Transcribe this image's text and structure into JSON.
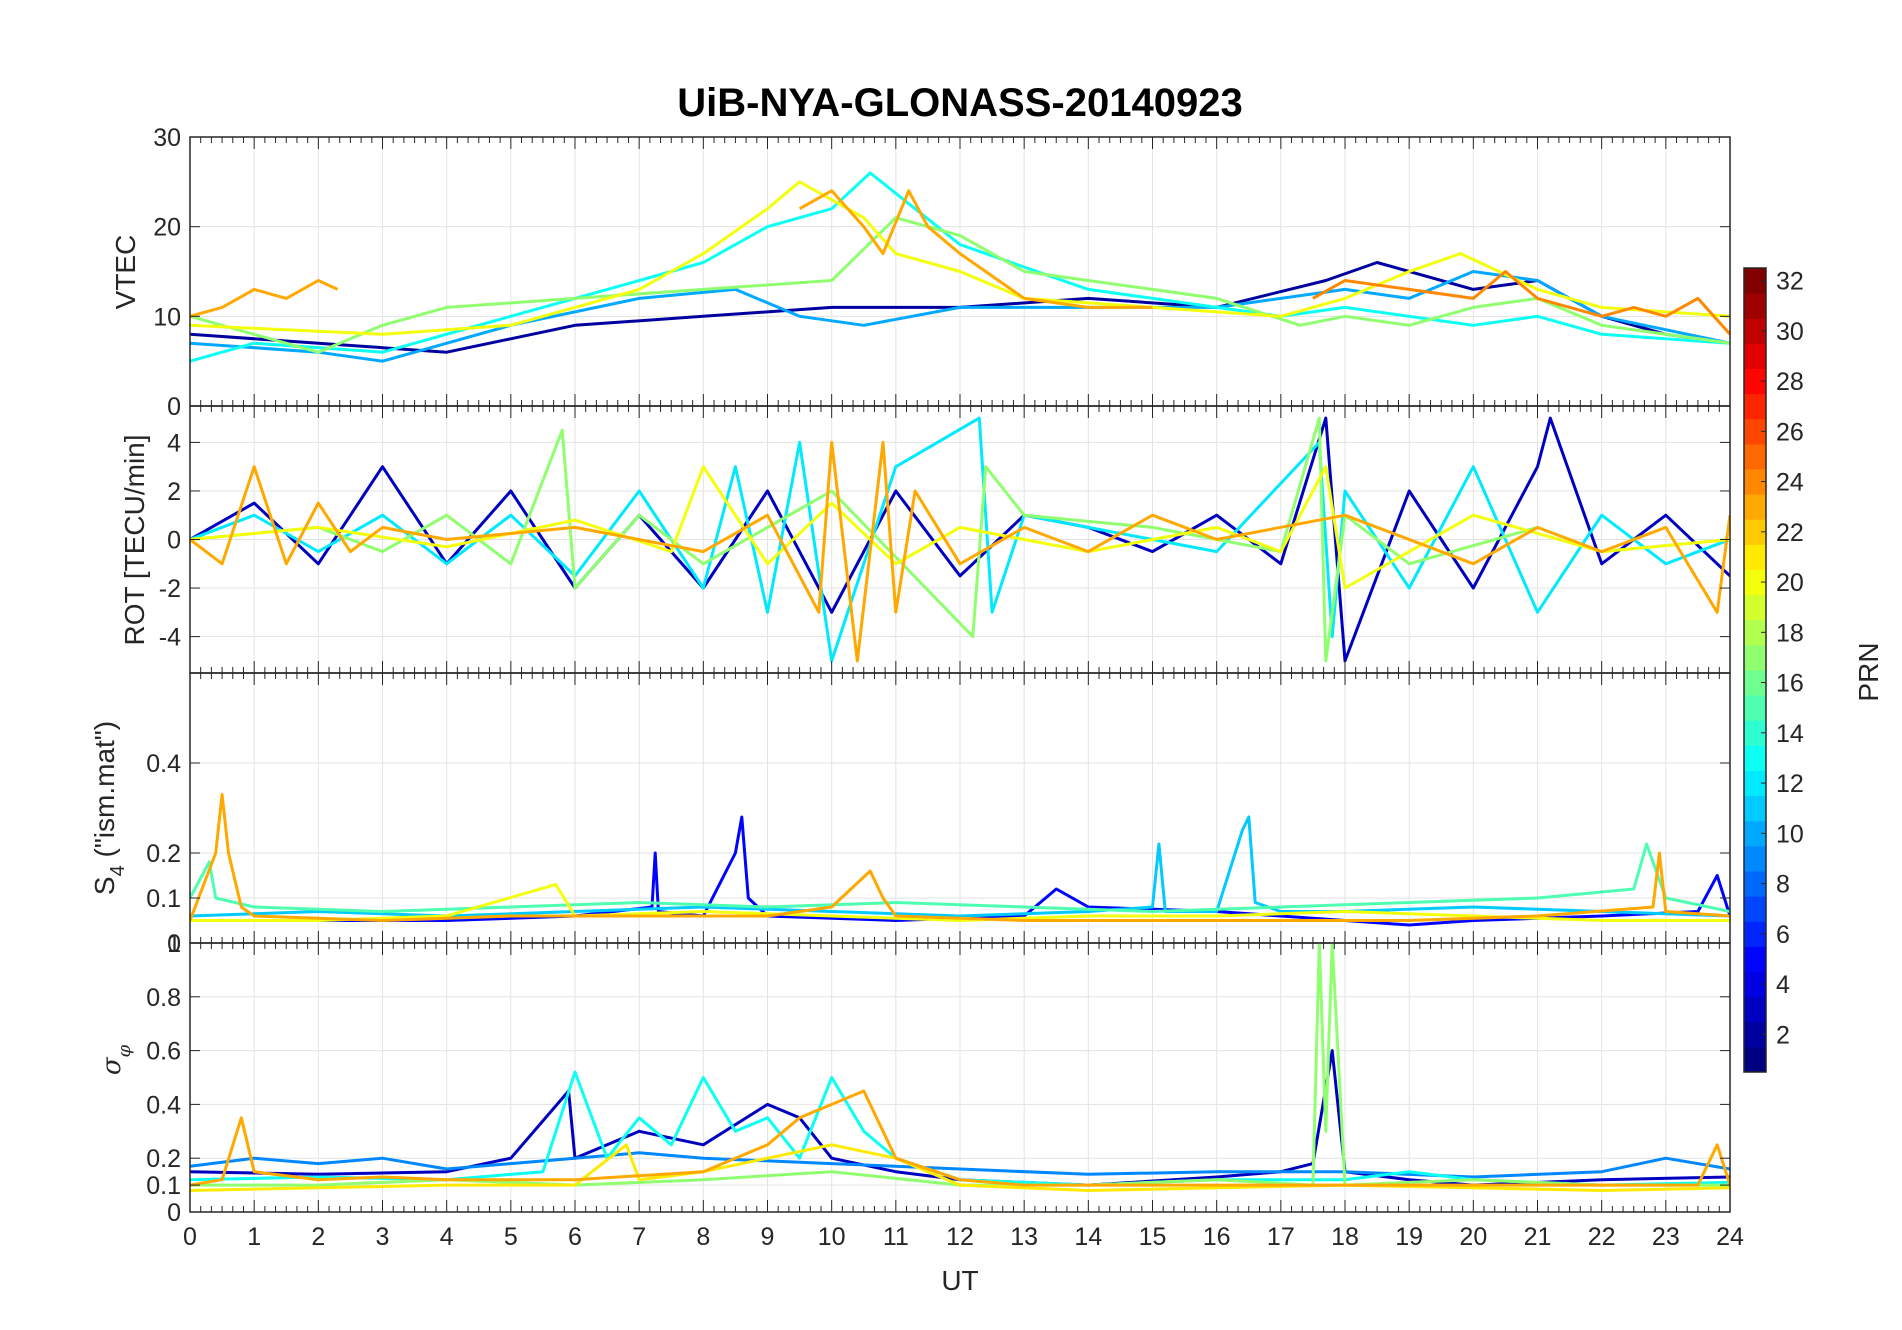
{
  "title": "UiB-NYA-GLONASS-20140923",
  "xlabel": "UT",
  "colorbar": {
    "label": "PRN",
    "min": 1,
    "max": 32,
    "colormap": "jet",
    "ticks": [
      "2",
      "4",
      "6",
      "8",
      "10",
      "12",
      "14",
      "16",
      "18",
      "20",
      "22",
      "24",
      "26",
      "28",
      "30",
      "32"
    ]
  },
  "chart_data": [
    {
      "type": "line",
      "panel": "VTEC",
      "ylabel": "VTEC",
      "xlim": [
        0,
        24
      ],
      "ylim": [
        0,
        30
      ],
      "yticks": [
        "0",
        "10",
        "20",
        "30"
      ],
      "xticks": [],
      "grid": true,
      "series": [
        {
          "prn": 2,
          "x": [
            0,
            2,
            4,
            6,
            8,
            10,
            11,
            12,
            14,
            16,
            17.7,
            18.5,
            20,
            21,
            22,
            23,
            24
          ],
          "y": [
            8,
            7,
            6,
            9,
            10,
            11,
            11,
            11,
            12,
            11,
            14,
            16,
            13,
            14,
            10,
            8,
            7
          ]
        },
        {
          "prn": 10,
          "x": [
            0,
            2,
            3,
            5,
            7,
            8.5,
            9.5,
            10.5,
            12,
            14,
            16,
            18,
            19,
            20,
            21,
            22,
            24
          ],
          "y": [
            7,
            6,
            5,
            9,
            12,
            13,
            10,
            9,
            11,
            11,
            11,
            13,
            12,
            15,
            14,
            10,
            7
          ]
        },
        {
          "prn": 13,
          "x": [
            0,
            1,
            3,
            5,
            7,
            8,
            9,
            9.5,
            10,
            10.6,
            12,
            14,
            17,
            18,
            20,
            21,
            22,
            24
          ],
          "y": [
            5,
            7,
            6,
            10,
            14,
            16,
            20,
            21,
            22,
            26,
            18,
            13,
            10,
            11,
            9,
            10,
            8,
            7
          ]
        },
        {
          "prn": 17,
          "x": [
            0,
            1,
            2,
            3,
            4,
            6,
            8,
            10,
            11,
            12,
            13,
            14,
            15,
            16,
            17.3,
            18,
            19,
            20,
            21,
            22,
            24
          ],
          "y": [
            10,
            8,
            6,
            9,
            11,
            12,
            13,
            14,
            21,
            19,
            15,
            14,
            13,
            12,
            9,
            10,
            9,
            11,
            12,
            9,
            7
          ]
        },
        {
          "prn": 20,
          "x": [
            0,
            3,
            5,
            6,
            7,
            8,
            9,
            9.5,
            10,
            10.5,
            11,
            12,
            13,
            15,
            17,
            18,
            19,
            19.8,
            21,
            22,
            24
          ],
          "y": [
            9,
            8,
            9,
            11,
            13,
            17,
            22,
            25,
            23,
            21,
            17,
            15,
            12,
            11,
            10,
            12,
            15,
            17,
            13,
            11,
            10
          ]
        },
        {
          "prn": 23,
          "x": [
            0,
            0.5,
            1,
            1.5,
            2,
            2.3
          ],
          "y": [
            10,
            11,
            13,
            12,
            14,
            13
          ]
        },
        {
          "prn": 23,
          "x": [
            9.5,
            10,
            10.5,
            10.8,
            11.2,
            11.5,
            12,
            13,
            14,
            15
          ],
          "y": [
            22,
            24,
            20,
            17,
            24,
            20,
            17,
            12,
            11,
            11
          ]
        },
        {
          "prn": 24,
          "x": [
            17.5,
            18,
            19,
            20,
            20.5,
            21,
            22,
            22.5,
            23,
            23.5,
            24
          ],
          "y": [
            12,
            14,
            13,
            12,
            15,
            12,
            10,
            11,
            10,
            12,
            8
          ]
        }
      ]
    },
    {
      "type": "line",
      "panel": "ROT",
      "ylabel": "ROT [TECU/min]",
      "xlim": [
        0,
        24
      ],
      "ylim": [
        -5.5,
        5.5
      ],
      "yticks": [
        "-4",
        "-2",
        "0",
        "2",
        "4"
      ],
      "xticks": [],
      "grid": true,
      "series": [
        {
          "prn": 3,
          "x": [
            0,
            1,
            2,
            3,
            4,
            5,
            6,
            7,
            8,
            9,
            10,
            11,
            12,
            13,
            14,
            15,
            16,
            17,
            17.7,
            18,
            19,
            20,
            21,
            21.2,
            22,
            23,
            24
          ],
          "y": [
            0,
            1.5,
            -1,
            3,
            -1,
            2,
            -2,
            1,
            -2,
            2,
            -3,
            2,
            -1.5,
            1,
            0.5,
            -0.5,
            1,
            -1,
            5,
            -5,
            2,
            -2,
            3,
            5,
            -1,
            1,
            -1.5
          ]
        },
        {
          "prn": 12,
          "x": [
            0,
            1,
            2,
            3,
            4,
            5,
            6,
            7,
            8,
            8.5,
            9,
            9.5,
            10,
            11,
            12.3,
            12.5,
            13,
            14,
            16,
            17.6,
            17.8,
            18,
            19,
            20,
            21,
            22,
            23,
            24
          ],
          "y": [
            0,
            1,
            -0.5,
            1,
            -1,
            1,
            -1.5,
            2,
            -2,
            3,
            -3,
            4,
            -5,
            3,
            5,
            -3,
            1,
            0.5,
            -0.5,
            4,
            -4,
            2,
            -2,
            3,
            -3,
            1,
            -1,
            0
          ]
        },
        {
          "prn": 17,
          "x": [
            0,
            2,
            3,
            4,
            5,
            5.8,
            6,
            7,
            8,
            10,
            12.2,
            12.4,
            13,
            15,
            17,
            17.6,
            17.7,
            18,
            19,
            21,
            22,
            24
          ],
          "y": [
            0,
            0.5,
            -0.5,
            1,
            -1,
            4.5,
            -2,
            1,
            -1,
            2,
            -4,
            3,
            1,
            0.5,
            -0.5,
            5,
            -5,
            1,
            -1,
            0.5,
            -0.5,
            0
          ]
        },
        {
          "prn": 20,
          "x": [
            0,
            2,
            4,
            6,
            7.5,
            8,
            9,
            10,
            11,
            12,
            14,
            16,
            17,
            17.7,
            18,
            20,
            22,
            24
          ],
          "y": [
            0,
            0.5,
            -0.3,
            0.8,
            -0.5,
            3,
            -1,
            1.5,
            -1,
            0.5,
            -0.5,
            0.5,
            -0.5,
            3,
            -2,
            1,
            -0.5,
            0
          ]
        },
        {
          "prn": 23,
          "x": [
            0,
            0.5,
            1,
            1.5,
            2,
            2.5,
            3,
            4,
            6,
            8,
            9,
            9.8,
            10,
            10.4,
            10.8,
            11,
            11.3,
            12,
            13,
            14,
            15,
            16,
            18,
            20,
            21,
            22,
            23,
            23.8,
            24
          ],
          "y": [
            0,
            -1,
            3,
            -1,
            1.5,
            -0.5,
            0.5,
            0,
            0.5,
            -0.5,
            1,
            -3,
            4,
            -5,
            4,
            -3,
            2,
            -1,
            0.5,
            -0.5,
            1,
            0,
            1,
            -1,
            0.5,
            -0.5,
            0.5,
            -3,
            1
          ]
        }
      ]
    },
    {
      "type": "line",
      "panel": "S4",
      "ylabel": "S_4 (\"ism.mat\")",
      "ylabel_symbol": "S",
      "ylabel_subscript": "4",
      "ylabel_rest": " (\"ism.mat\")",
      "xlim": [
        0,
        24
      ],
      "ylim": [
        0,
        0.6
      ],
      "yticks": [
        "0",
        "0.1",
        "0.2",
        "0.4"
      ],
      "xticks": [],
      "grid": true,
      "series": [
        {
          "prn": 5,
          "x": [
            0,
            2,
            4,
            6,
            7.2,
            7.25,
            7.3,
            8,
            8.5,
            8.6,
            8.7,
            9,
            11,
            13,
            13.5,
            14,
            16,
            18,
            19,
            20,
            22,
            23.5,
            23.8,
            24
          ],
          "y": [
            0.05,
            0.05,
            0.05,
            0.06,
            0.08,
            0.2,
            0.07,
            0.06,
            0.2,
            0.28,
            0.1,
            0.06,
            0.05,
            0.06,
            0.12,
            0.08,
            0.07,
            0.05,
            0.04,
            0.05,
            0.06,
            0.07,
            0.15,
            0.06
          ]
        },
        {
          "prn": 11,
          "x": [
            0,
            2,
            4,
            6,
            8,
            10,
            12,
            14,
            15,
            15.1,
            15.2,
            16,
            16.4,
            16.5,
            16.6,
            17,
            18,
            20,
            22,
            24
          ],
          "y": [
            0.06,
            0.07,
            0.06,
            0.07,
            0.08,
            0.07,
            0.06,
            0.07,
            0.08,
            0.22,
            0.07,
            0.07,
            0.25,
            0.28,
            0.09,
            0.07,
            0.07,
            0.08,
            0.07,
            0.06
          ]
        },
        {
          "prn": 15,
          "x": [
            0,
            0.3,
            0.4,
            1,
            3,
            5,
            7,
            9,
            11,
            13,
            15,
            17,
            19,
            21,
            22.5,
            22.7,
            23,
            24
          ],
          "y": [
            0.1,
            0.18,
            0.1,
            0.08,
            0.07,
            0.08,
            0.09,
            0.08,
            0.09,
            0.08,
            0.07,
            0.08,
            0.09,
            0.1,
            0.12,
            0.22,
            0.1,
            0.07
          ]
        },
        {
          "prn": 20,
          "x": [
            0,
            2,
            4,
            5.7,
            6,
            8,
            10,
            12,
            14,
            16,
            18,
            20,
            22,
            24
          ],
          "y": [
            0.05,
            0.05,
            0.06,
            0.13,
            0.06,
            0.07,
            0.06,
            0.05,
            0.06,
            0.06,
            0.07,
            0.06,
            0.05,
            0.05
          ]
        },
        {
          "prn": 23,
          "x": [
            0,
            0.4,
            0.5,
            0.6,
            0.8,
            1,
            3,
            5,
            7,
            9,
            10,
            10.6,
            10.8,
            11,
            13,
            15,
            17,
            19,
            21,
            22.8,
            22.9,
            23,
            24
          ],
          "y": [
            0.05,
            0.2,
            0.33,
            0.2,
            0.08,
            0.06,
            0.05,
            0.06,
            0.06,
            0.06,
            0.08,
            0.16,
            0.1,
            0.06,
            0.05,
            0.05,
            0.05,
            0.05,
            0.06,
            0.08,
            0.2,
            0.07,
            0.06
          ]
        }
      ]
    },
    {
      "type": "line",
      "panel": "sigma_phi",
      "ylabel": "σ_φ",
      "ylabel_symbol": "σ",
      "ylabel_subscript": "φ",
      "xlim": [
        0,
        24
      ],
      "ylim": [
        0,
        1
      ],
      "yticks": [
        "0",
        "0.1",
        "0.2",
        "0.4",
        "0.6",
        "0.8",
        "1"
      ],
      "xticks": [
        "0",
        "1",
        "2",
        "3",
        "4",
        "5",
        "6",
        "7",
        "8",
        "9",
        "10",
        "11",
        "12",
        "13",
        "14",
        "15",
        "16",
        "17",
        "18",
        "19",
        "20",
        "21",
        "22",
        "23",
        "24"
      ],
      "grid": true,
      "series": [
        {
          "prn": 3,
          "x": [
            0,
            2,
            4,
            5,
            5.9,
            6,
            7,
            8,
            9,
            9.5,
            10,
            11,
            12,
            14,
            16,
            17,
            17.5,
            17.8,
            18,
            19,
            20,
            22,
            24
          ],
          "y": [
            0.15,
            0.14,
            0.15,
            0.2,
            0.45,
            0.2,
            0.3,
            0.25,
            0.4,
            0.35,
            0.2,
            0.15,
            0.12,
            0.1,
            0.13,
            0.15,
            0.18,
            0.6,
            0.15,
            0.12,
            0.1,
            0.12,
            0.13
          ]
        },
        {
          "prn": 9,
          "x": [
            0,
            1,
            2,
            3,
            4,
            5,
            6,
            7,
            8,
            10,
            12,
            14,
            16,
            18,
            20,
            22,
            23,
            24
          ],
          "y": [
            0.17,
            0.2,
            0.18,
            0.2,
            0.16,
            0.18,
            0.2,
            0.22,
            0.2,
            0.18,
            0.16,
            0.14,
            0.15,
            0.15,
            0.13,
            0.15,
            0.2,
            0.16
          ]
        },
        {
          "prn": 13,
          "x": [
            0,
            2,
            4,
            5.5,
            6,
            6.5,
            7,
            7.5,
            8,
            8.5,
            9,
            9.5,
            10,
            10.5,
            11,
            12,
            14,
            16,
            18,
            19,
            20,
            22,
            24
          ],
          "y": [
            0.12,
            0.13,
            0.12,
            0.15,
            0.52,
            0.2,
            0.35,
            0.25,
            0.5,
            0.3,
            0.35,
            0.2,
            0.5,
            0.3,
            0.2,
            0.12,
            0.1,
            0.12,
            0.12,
            0.15,
            0.12,
            0.1,
            0.11
          ]
        },
        {
          "prn": 17,
          "x": [
            0,
            2,
            4,
            6,
            8,
            10,
            12,
            14,
            16,
            17.5,
            17.6,
            17.7,
            17.8,
            18,
            20,
            22,
            24
          ],
          "y": [
            0.1,
            0.1,
            0.12,
            0.1,
            0.12,
            0.15,
            0.1,
            0.1,
            0.12,
            0.1,
            1,
            0.3,
            1,
            0.1,
            0.12,
            0.1,
            0.1
          ]
        },
        {
          "prn": 21,
          "x": [
            0,
            2,
            4,
            6,
            6.8,
            7,
            8,
            9,
            10,
            11,
            12,
            14,
            16,
            18,
            20,
            22,
            24
          ],
          "y": [
            0.08,
            0.09,
            0.1,
            0.1,
            0.25,
            0.12,
            0.15,
            0.2,
            0.25,
            0.2,
            0.1,
            0.08,
            0.09,
            0.1,
            0.09,
            0.08,
            0.09
          ]
        },
        {
          "prn": 23,
          "x": [
            0,
            0.5,
            0.8,
            1,
            2,
            3,
            4,
            6,
            8,
            9,
            9.5,
            10,
            10.5,
            10.8,
            11,
            12,
            13,
            14,
            16,
            18,
            20,
            22,
            23.5,
            23.8,
            24
          ],
          "y": [
            0.1,
            0.12,
            0.35,
            0.15,
            0.12,
            0.13,
            0.12,
            0.12,
            0.15,
            0.25,
            0.35,
            0.4,
            0.45,
            0.3,
            0.2,
            0.12,
            0.1,
            0.1,
            0.1,
            0.1,
            0.1,
            0.1,
            0.1,
            0.25,
            0.1
          ]
        }
      ]
    }
  ]
}
